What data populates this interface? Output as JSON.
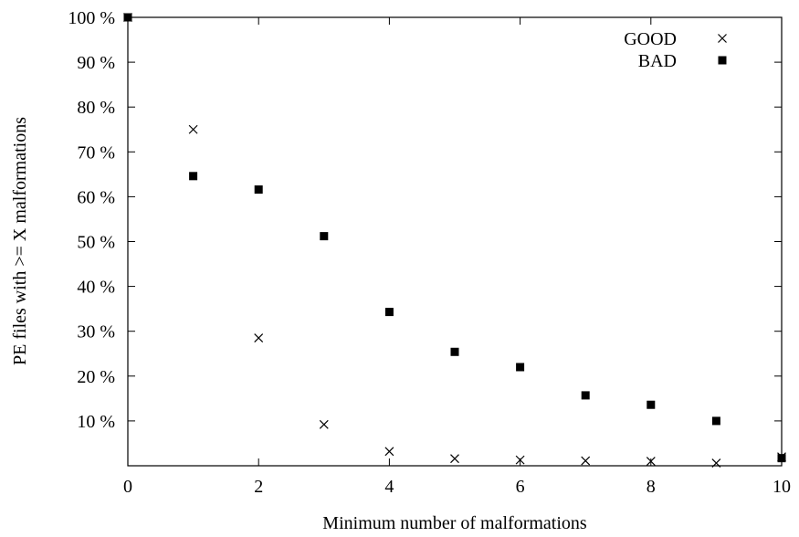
{
  "chart_data": {
    "type": "scatter",
    "xlabel": "Minimum number of malformations",
    "ylabel": "PE files with >= X malformations",
    "xlim": [
      0,
      10
    ],
    "ylim": [
      0,
      100
    ],
    "xticks": [
      0,
      2,
      4,
      6,
      8,
      10
    ],
    "yticks": [
      10,
      20,
      30,
      40,
      50,
      60,
      70,
      80,
      90,
      100
    ],
    "ytick_suffix": " %",
    "grid": false,
    "legend_position": "top-right",
    "series": [
      {
        "name": "GOOD",
        "marker": "x",
        "color": "#000000",
        "x": [
          0,
          1,
          2,
          3,
          4,
          5,
          6,
          7,
          8,
          9,
          10
        ],
        "y": [
          100,
          75,
          28.5,
          9.2,
          3.2,
          1.6,
          1.3,
          1.1,
          1.0,
          0.6,
          2.0
        ]
      },
      {
        "name": "BAD",
        "marker": "filled-square",
        "color": "#000000",
        "x": [
          0,
          1,
          2,
          3,
          4,
          5,
          6,
          7,
          8,
          9,
          10
        ],
        "y": [
          100,
          64.6,
          61.6,
          51.2,
          34.3,
          25.4,
          22.0,
          15.7,
          13.6,
          10.0,
          1.7
        ]
      }
    ]
  }
}
